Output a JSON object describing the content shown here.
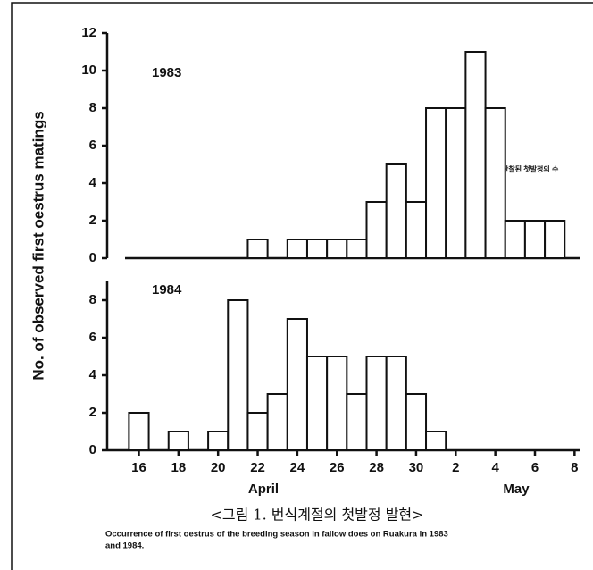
{
  "figure": {
    "y_label": "No. of observed first oestrus matings",
    "caption_ko": "<그림 1. 번식계절의 첫발정 발현>",
    "caption_en_lines": [
      "Occurrence of first oestrus of the breeding season in fallow does on Ruakura in 1983",
      "and 1984."
    ]
  },
  "chart_data": [
    {
      "type": "bar",
      "label": "1983",
      "annotation": "관찰된 첫발정의 수",
      "x": [
        22,
        24,
        25,
        26,
        27,
        28,
        29,
        30,
        31,
        32,
        33,
        34,
        35,
        36,
        37
      ],
      "values": [
        1,
        1,
        1,
        1,
        1,
        3,
        5,
        3,
        8,
        8,
        11,
        8,
        2,
        2,
        2
      ],
      "xlim": [
        14.4,
        38.3
      ],
      "ylim": [
        0,
        12
      ],
      "yticks": [
        0,
        2,
        4,
        6,
        8,
        10,
        12
      ]
    },
    {
      "type": "bar",
      "label": "1984",
      "x": [
        16,
        18,
        20,
        21,
        22,
        23,
        24,
        25,
        26,
        27,
        28,
        29,
        30,
        31
      ],
      "values": [
        2,
        1,
        1,
        8,
        2,
        3,
        7,
        5,
        5,
        3,
        5,
        5,
        3,
        1
      ],
      "xlim": [
        14.4,
        38.3
      ],
      "ylim": [
        0,
        9
      ],
      "yticks": [
        0,
        2,
        4,
        6,
        8
      ],
      "xticks": [
        16,
        18,
        20,
        22,
        24,
        26,
        28,
        30,
        {
          "value": 32,
          "label": "2"
        },
        {
          "value": 34,
          "label": "4"
        },
        {
          "value": 36,
          "label": "6"
        },
        {
          "value": 38,
          "label": "8"
        }
      ],
      "x_group_labels": [
        "April",
        "May"
      ]
    }
  ]
}
